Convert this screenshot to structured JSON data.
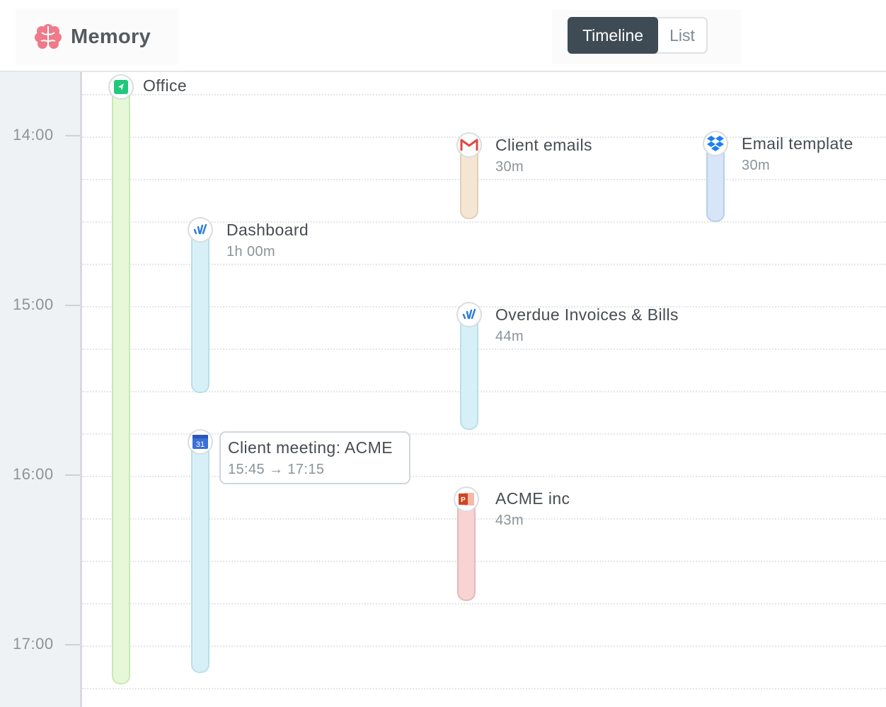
{
  "app": {
    "title": "Memory",
    "logo_icon": "brain-icon",
    "brand_color": "#f07a8a"
  },
  "view_toggle": {
    "active": "Timeline",
    "inactive": "List"
  },
  "axis": {
    "hours": [
      "14:00",
      "15:00",
      "16:00",
      "17:00"
    ]
  },
  "events": {
    "office": {
      "title": "Office",
      "icon": "location-arrow-icon",
      "color": "#e6f8d8"
    },
    "client_emails": {
      "title": "Client emails",
      "duration": "30m",
      "icon": "gmail-icon",
      "color": "#f5e6d3"
    },
    "email_template": {
      "title": "Email template",
      "duration": "30m",
      "icon": "dropbox-icon",
      "color": "#d6e6f7"
    },
    "dashboard": {
      "title": "Dashboard",
      "duration": "1h 00m",
      "icon": "wave-app-icon",
      "color": "#d7f0f7"
    },
    "overdue": {
      "title": "Overdue Invoices & Bills",
      "duration": "44m",
      "icon": "wave-app-icon",
      "color": "#d7f0f7"
    },
    "client_meeting": {
      "title": "Client meeting: ACME",
      "time_range": "15:45 → 17:15",
      "icon": "calendar-icon",
      "color": "#d7f0f7"
    },
    "acme": {
      "title": "ACME inc",
      "duration": "43m",
      "icon": "powerpoint-icon",
      "color": "#f7d3d3"
    }
  }
}
